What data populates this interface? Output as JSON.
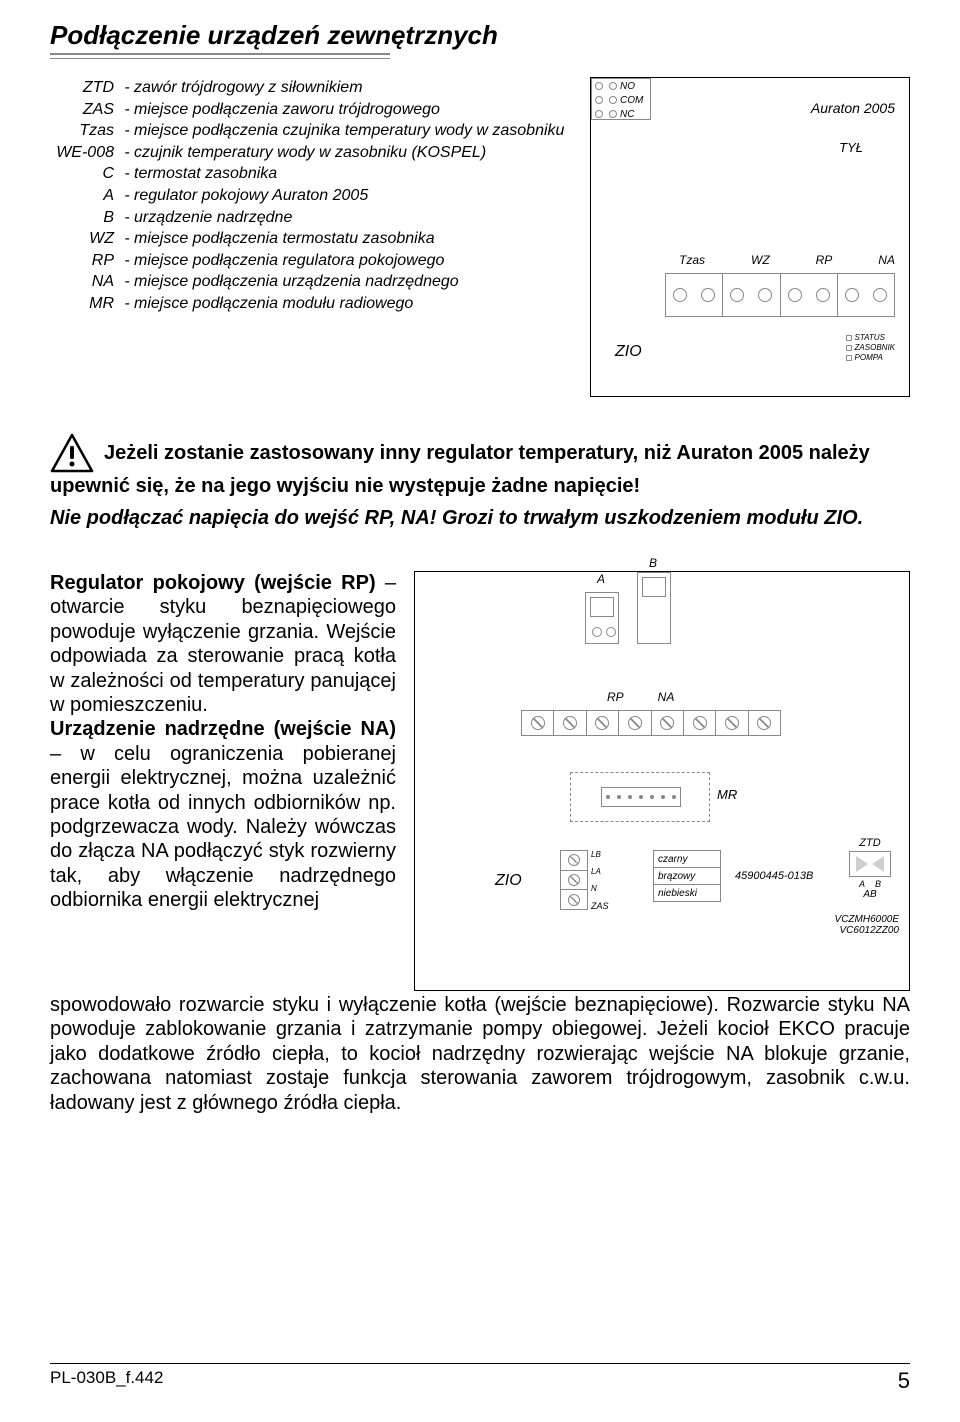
{
  "title": "Podłączenie urządzeń zewnętrznych",
  "definitions": [
    {
      "key": "ZTD",
      "val": "zawór trójdrogowy z siłownikiem"
    },
    {
      "key": "ZAS",
      "val": "miejsce podłączenia zaworu trójdrogowego"
    },
    {
      "key": "Tzas",
      "val": "miejsce podłączenia czujnika temperatury wody w zasobniku"
    },
    {
      "key": "WE-008",
      "val": "czujnik temperatury wody w zasobniku (KOSPEL)"
    },
    {
      "key": "C",
      "val": "termostat zasobnika"
    },
    {
      "key": "A",
      "val": "regulator pokojowy Auraton 2005"
    },
    {
      "key": "B",
      "val": "urządzenie nadrzędne"
    },
    {
      "key": "WZ",
      "val": "miejsce podłączenia termostatu zasobnika"
    },
    {
      "key": "RP",
      "val": "miejsce podłączenia regulatora pokojowego"
    },
    {
      "key": "NA",
      "val": "miejsce podłączenia urządzenia nadrzędnego"
    },
    {
      "key": "MR",
      "val": "miejsce podłączenia modułu radiowego"
    }
  ],
  "diagram1": {
    "relay_labels": [
      "NO",
      "COM",
      "NC"
    ],
    "device": "Auraton 2005",
    "back_label": "TYŁ",
    "terminals": [
      "Tzas",
      "WZ",
      "RP",
      "NA"
    ],
    "zio": "ZIO",
    "leds": [
      "STATUS",
      "ZASOBNIK",
      "POMPA"
    ]
  },
  "warning": {
    "line1_a": "Jeżeli zostanie zastosowany inny regulator temperatury, niż Auraton 2005 należy upewnić się, że na jego wyjściu nie występuje żadne napięcie!",
    "line2": "Nie podłączać napięcia do wejść RP, NA! Grozi to trwałym uszkodzeniem modułu ZIO."
  },
  "mid_text": "Regulator pokojowy (wejście RP) – otwarcie styku beznapię­ciowego powoduje wyłączenie grzania. Wejście odpowiada za sterowanie pracą kotła w zależ­ności od temperatury panującej w pomieszczeniu.\nUrządzenie nadrzędne (wejście NA) – w celu ograniczenia pobie­ranej energii elektrycznej, można uzależnić prace kotła od innych odbiorników np. podgrzewacza wody. Należy wówczas do złącza NA podłączyć styk rozwierny tak, aby włączenie nadrzędnego odbiornika energii elektrycznej",
  "diagram2": {
    "a": "A",
    "b": "B",
    "rp": "RP",
    "na": "NA",
    "mr": "MR",
    "zio": "ZIO",
    "pwr": [
      "LB",
      "LA",
      "N"
    ],
    "zas": "ZAS",
    "wires": [
      "czarny",
      "brązowy",
      "niebieski"
    ],
    "part": "45900445-013B",
    "ztd": "ZTD",
    "ab": "AB",
    "a2": "A",
    "b2": "B",
    "vc1": "VCZMH6000E",
    "vc2": "VC6012ZZ00"
  },
  "bottom_text": "spowodowało rozwarcie styku i wyłączenie kotła (wejście beznapięciowe). Rozwarcie styku NA powoduje zablokowanie grzania i zatrzymanie pompy obiegowej. Jeżeli kocioł EKCO pracuje jako dodatkowe źródło ciepła, to kocioł nadrzędny rozwierając wejście NA blokuje grzanie, zachowana natomiast zostaje funkcja sterowania zaworem trójdrogowym, zasobnik c.w.u. ładowany jest z głównego źródła ciepła.",
  "footer": {
    "code": "PL-030B_f.442",
    "page": "5"
  }
}
